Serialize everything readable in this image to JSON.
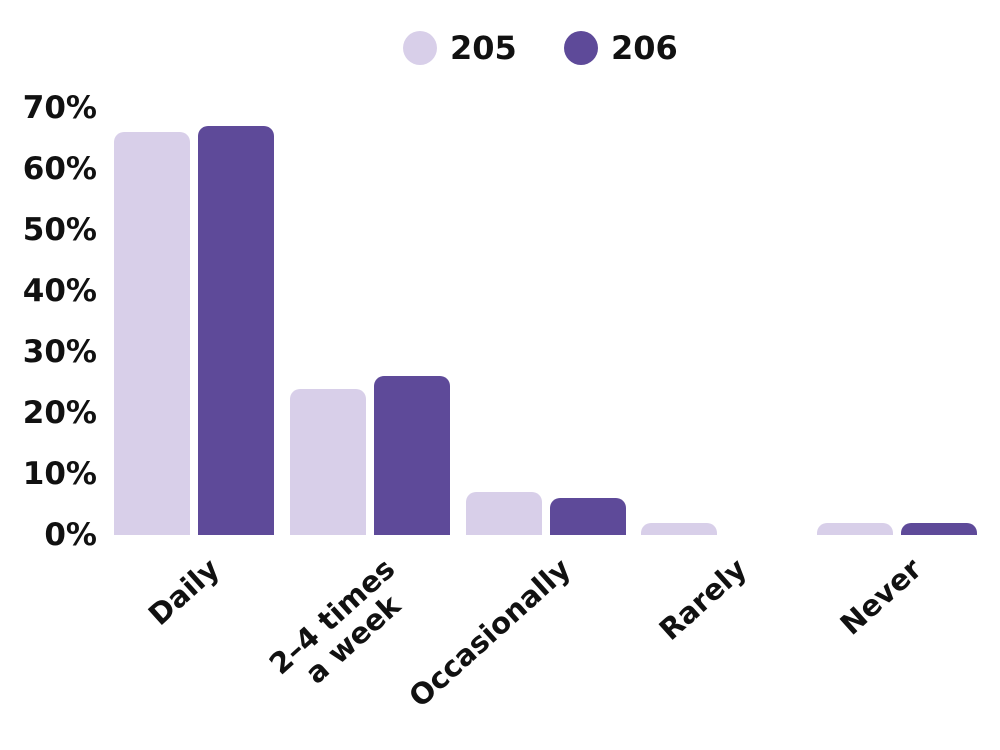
{
  "chart_data": {
    "type": "bar",
    "title": "",
    "categories": [
      "Daily",
      "2–4 times\na week",
      "Occasionally",
      "Rarely",
      "Never"
    ],
    "series": [
      {
        "name": "205",
        "color": "#d8cfe9",
        "values": [
          66,
          24,
          7,
          2,
          2
        ]
      },
      {
        "name": "206",
        "color": "#5e4a99",
        "values": [
          67,
          26,
          6,
          0,
          2
        ]
      }
    ],
    "y_axis": {
      "unit": "%",
      "min": 0,
      "max": 70,
      "ticks": [
        {
          "label": "0%",
          "value": 0
        },
        {
          "label": "10%",
          "value": 10
        },
        {
          "label": "20%",
          "value": 20
        },
        {
          "label": "30%",
          "value": 30
        },
        {
          "label": "40%",
          "value": 40
        },
        {
          "label": "50%",
          "value": 50
        },
        {
          "label": "60%",
          "value": 60
        },
        {
          "label": "70%",
          "value": 70
        }
      ]
    },
    "legend": {
      "position": "top-center",
      "entries": [
        "205",
        "206"
      ]
    },
    "grid": false,
    "background_color": "#ffffff",
    "text_color": "#111111",
    "bar_corner_style": "rounded-top"
  }
}
